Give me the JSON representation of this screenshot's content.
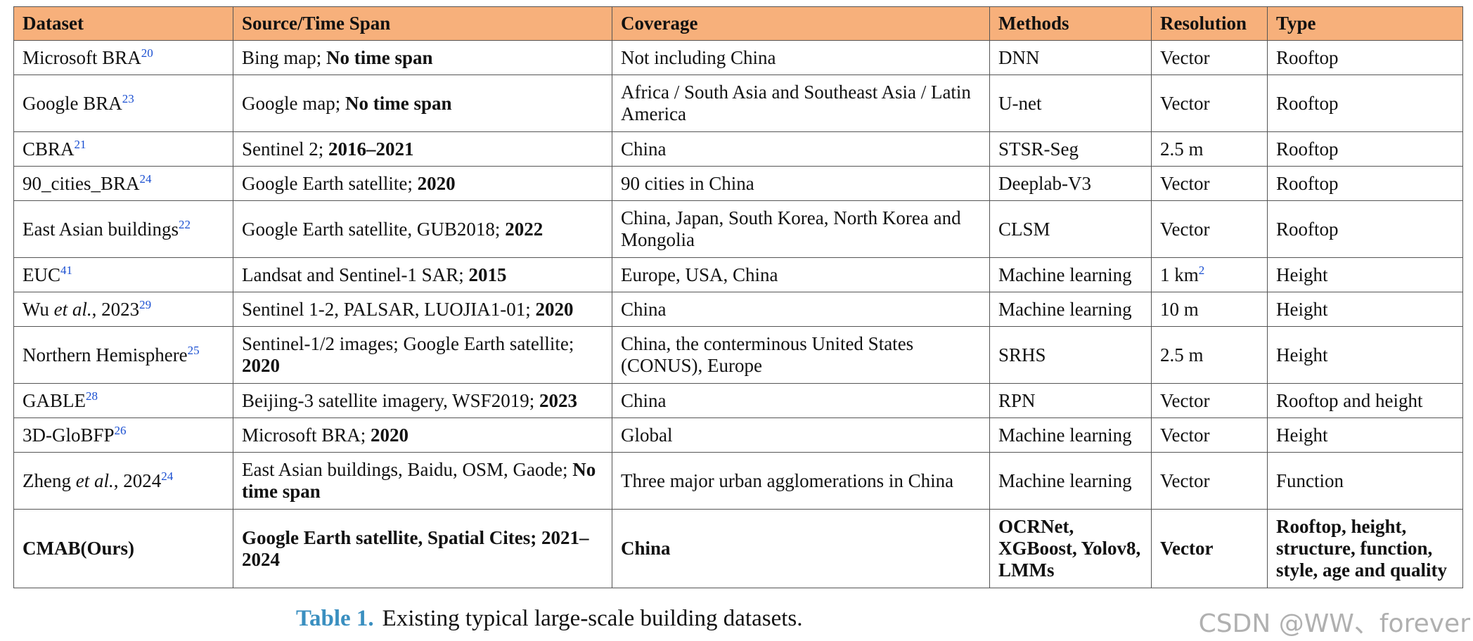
{
  "table": {
    "header": [
      "Dataset",
      "Source/Time Span",
      "Coverage",
      "Methods",
      "Resolution",
      "Type"
    ],
    "rows": [
      [
        [
          "Microsoft BRA",
          {
            "t": "20",
            "s": "sup"
          }
        ],
        [
          "Bing map; ",
          {
            "t": "No time span",
            "s": "b"
          }
        ],
        [
          "Not including China"
        ],
        [
          "DNN"
        ],
        [
          "Vector"
        ],
        [
          "Rooftop"
        ]
      ],
      [
        [
          "Google BRA",
          {
            "t": "23",
            "s": "sup"
          }
        ],
        [
          "Google map; ",
          {
            "t": "No time span",
            "s": "b"
          }
        ],
        [
          "Africa / South Asia and Southeast Asia / Latin America"
        ],
        [
          "U-net"
        ],
        [
          "Vector"
        ],
        [
          "Rooftop"
        ]
      ],
      [
        [
          "CBRA",
          {
            "t": "21",
            "s": "sup"
          }
        ],
        [
          "Sentinel 2; ",
          {
            "t": "2016–2021",
            "s": "b"
          }
        ],
        [
          "China"
        ],
        [
          "STSR-Seg"
        ],
        [
          "2.5 m"
        ],
        [
          "Rooftop"
        ]
      ],
      [
        [
          "90_cities_BRA",
          {
            "t": "24",
            "s": "sup"
          }
        ],
        [
          "Google Earth satellite; ",
          {
            "t": "2020",
            "s": "b"
          }
        ],
        [
          "90 cities in China"
        ],
        [
          "Deeplab-V3"
        ],
        [
          "Vector"
        ],
        [
          "Rooftop"
        ]
      ],
      [
        [
          "East Asian buildings",
          {
            "t": "22",
            "s": "sup"
          }
        ],
        [
          "Google Earth satellite, GUB2018; ",
          {
            "t": "2022",
            "s": "b"
          }
        ],
        [
          "China, Japan, South Korea, North Korea and Mongolia"
        ],
        [
          "CLSM"
        ],
        [
          "Vector"
        ],
        [
          "Rooftop"
        ]
      ],
      [
        [
          "EUC",
          {
            "t": "41",
            "s": "sup"
          }
        ],
        [
          "Landsat and Sentinel-1 SAR; ",
          {
            "t": "2015",
            "s": "b"
          }
        ],
        [
          "Europe, USA, China"
        ],
        [
          "Machine learning"
        ],
        [
          "1 km",
          {
            "t": "2",
            "s": "sup"
          }
        ],
        [
          "Height"
        ]
      ],
      [
        [
          "Wu ",
          {
            "t": "et al.",
            "s": "i"
          },
          ", 2023",
          {
            "t": "29",
            "s": "sup"
          }
        ],
        [
          "Sentinel 1-2, PALSAR, LUOJIA1-01; ",
          {
            "t": "2020",
            "s": "b"
          }
        ],
        [
          "China"
        ],
        [
          "Machine learning"
        ],
        [
          "10 m"
        ],
        [
          "Height"
        ]
      ],
      [
        [
          "Northern Hemisphere",
          {
            "t": "25",
            "s": "sup"
          }
        ],
        [
          "Sentinel-1/2 images; Google Earth satellite; ",
          {
            "t": "2020",
            "s": "b"
          }
        ],
        [
          "China, the conterminous United States (CONUS), Europe"
        ],
        [
          "SRHS"
        ],
        [
          "2.5 m"
        ],
        [
          "Height"
        ]
      ],
      [
        [
          "GABLE",
          {
            "t": "28",
            "s": "sup"
          }
        ],
        [
          "Beijing-3 satellite imagery, WSF2019; ",
          {
            "t": "2023",
            "s": "b"
          }
        ],
        [
          "China"
        ],
        [
          "RPN"
        ],
        [
          "Vector"
        ],
        [
          "Rooftop and height"
        ]
      ],
      [
        [
          "3D-GloBFP",
          {
            "t": "26",
            "s": "sup"
          }
        ],
        [
          "Microsoft BRA; ",
          {
            "t": "2020",
            "s": "b"
          }
        ],
        [
          "Global"
        ],
        [
          "Machine learning"
        ],
        [
          "Vector"
        ],
        [
          "Height"
        ]
      ],
      [
        [
          "Zheng ",
          {
            "t": "et al.",
            "s": "i"
          },
          ", 2024",
          {
            "t": "24",
            "s": "sup"
          }
        ],
        [
          "East Asian buildings, Baidu, OSM, Gaode; ",
          {
            "t": "No time span",
            "s": "b"
          }
        ],
        [
          "Three major urban agglomerations in China"
        ],
        [
          "Machine learning"
        ],
        [
          "Vector"
        ],
        [
          "Function"
        ]
      ],
      [
        [
          {
            "t": "CMAB(Ours)",
            "s": "b"
          }
        ],
        [
          {
            "t": "Google Earth satellite, Spatial Cites; 2021–2024",
            "s": "b"
          }
        ],
        [
          {
            "t": "China",
            "s": "b"
          }
        ],
        [
          {
            "t": "OCRNet, XGBoost, Yolov8, LMMs",
            "s": "b"
          }
        ],
        [
          {
            "t": "Vector",
            "s": "b"
          }
        ],
        [
          {
            "t": "Rooftop, height, structure, function, style, age and quality",
            "s": "b"
          }
        ]
      ]
    ]
  },
  "caption": {
    "label": "Table 1.",
    "text": "Existing typical large-scale building datasets."
  },
  "watermark": "CSDN @WW、forever"
}
